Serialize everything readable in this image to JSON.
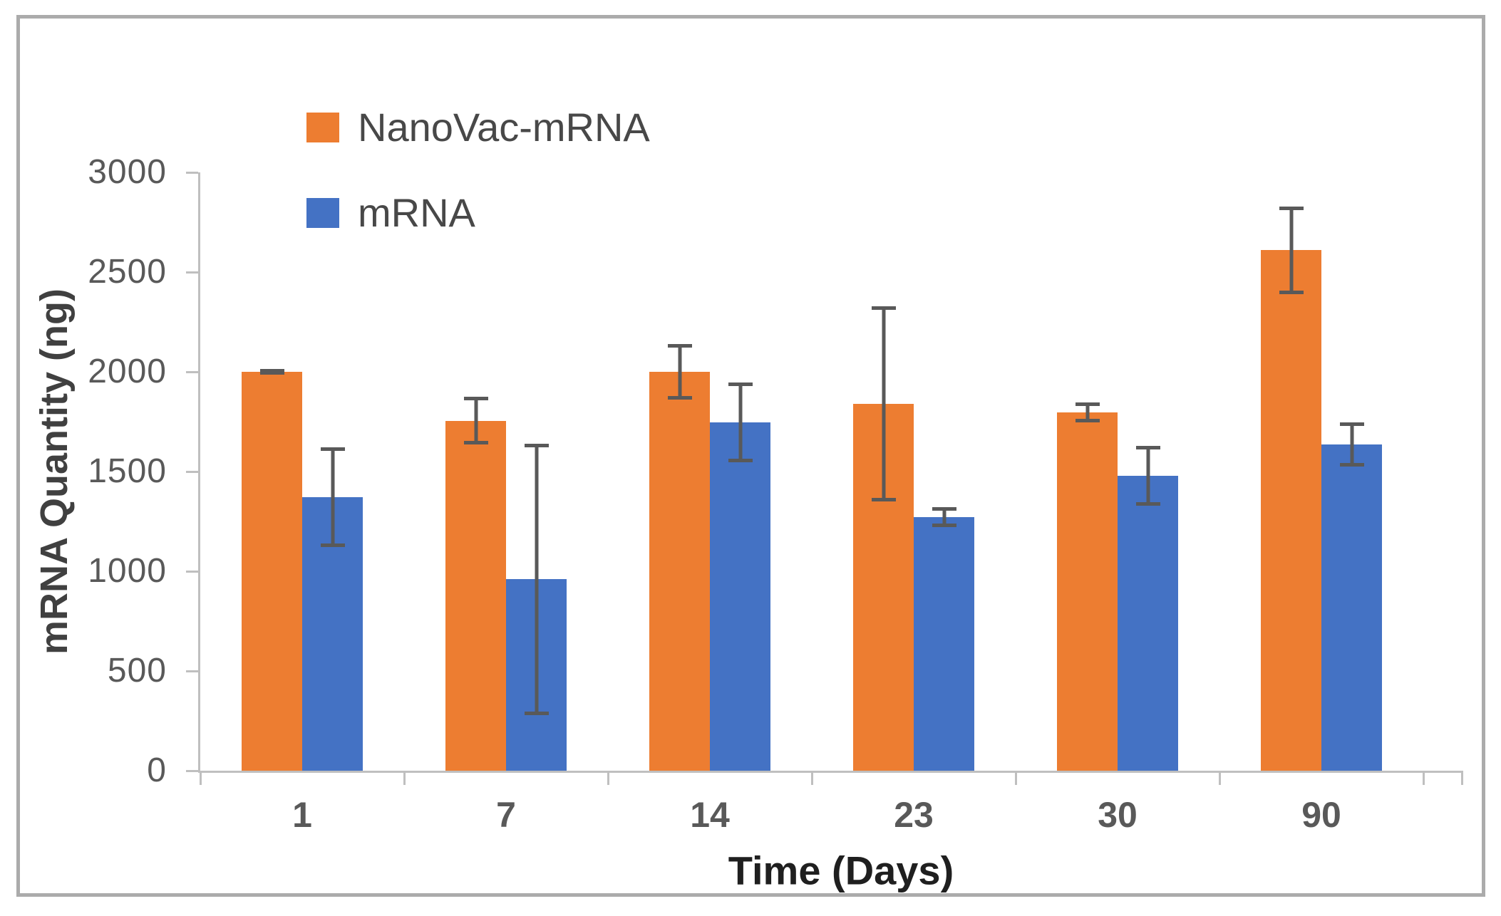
{
  "figure": {
    "border_color": "#ABABAB",
    "background": "#FFFFFF"
  },
  "chart_data": {
    "type": "bar",
    "title": "",
    "categories": [
      "1",
      "7",
      "14",
      "23",
      "30",
      "90"
    ],
    "xlabel": "Time (Days)",
    "ylabel": "mRNA Quantity (ng)",
    "ylim": [
      0,
      3000
    ],
    "yticks": [
      0,
      500,
      1000,
      1500,
      2000,
      2500,
      3000
    ],
    "grid": false,
    "legend_position": "top-left-inside-plot",
    "axis_line_color": "#BFBFBF",
    "error_bar_color": "#595959",
    "series": [
      {
        "name": "NanoVac-mRNA",
        "color": "#ED7D31",
        "values": [
          2000,
          1755,
          2000,
          1840,
          1795,
          2610
        ],
        "errors": [
          15,
          120,
          140,
          490,
          50,
          220
        ]
      },
      {
        "name": "mRNA",
        "color": "#4472C4",
        "values": [
          1370,
          960,
          1745,
          1270,
          1480,
          1635
        ],
        "errors": [
          250,
          680,
          200,
          50,
          150,
          110
        ]
      }
    ]
  }
}
